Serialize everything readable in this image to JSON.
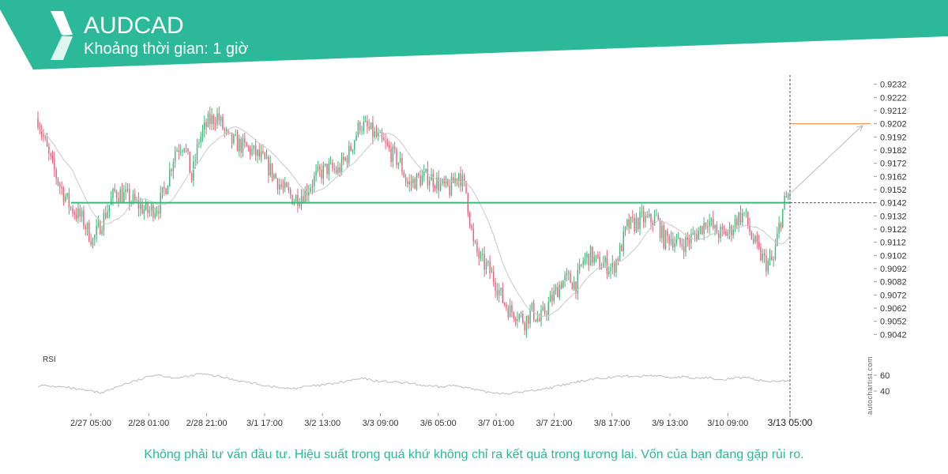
{
  "header": {
    "symbol": "AUDCAD",
    "interval_label": "Khoảng thời gian: 1 giờ",
    "accent_color": "#2bb99a",
    "logo": "autochartist-logo-icon"
  },
  "watermark": "autochartist.com",
  "disclaimer": "Không phải tư vấn đầu tư. Hiệu suất trong quá khứ không chỉ ra kết quả trong tương lai. Vốn của bạn đang gặp rủi ro.",
  "chart_data": {
    "type": "candlestick",
    "title": "",
    "ylim": [
      0.9035,
      0.9236
    ],
    "y_ticks": [
      0.9232,
      0.9222,
      0.9212,
      0.9202,
      0.9192,
      0.9182,
      0.9172,
      0.9162,
      0.9152,
      0.9142,
      0.9132,
      0.9122,
      0.9112,
      0.9102,
      0.9092,
      0.9082,
      0.9072,
      0.9062,
      0.9052,
      0.9042
    ],
    "x_tick_labels": [
      "2/27 05:00",
      "2/28 01:00",
      "2/28 21:00",
      "3/1 17:00",
      "3/2 13:00",
      "3/3 09:00",
      "3/6 05:00",
      "3/7 01:00",
      "3/7 21:00",
      "3/8 17:00",
      "3/9 13:00",
      "3/10 09:00",
      "3/13 05:00"
    ],
    "current_time_label": "3/13 05:00",
    "colors": {
      "up": "#3cb878",
      "down": "#e8607a",
      "support": "#3cb878",
      "target": "#e8883a",
      "ma": "#c8c8c8",
      "rsi": "#bbbbbb"
    },
    "price_anchors": [
      [
        0,
        0.9206
      ],
      [
        6,
        0.9177
      ],
      [
        12,
        0.9155
      ],
      [
        18,
        0.9138
      ],
      [
        24,
        0.913
      ],
      [
        30,
        0.9113
      ],
      [
        36,
        0.9131
      ],
      [
        42,
        0.915
      ],
      [
        48,
        0.9147
      ],
      [
        54,
        0.9141
      ],
      [
        60,
        0.9135
      ],
      [
        66,
        0.914
      ],
      [
        70,
        0.9155
      ],
      [
        75,
        0.9182
      ],
      [
        80,
        0.9188
      ],
      [
        84,
        0.916
      ],
      [
        88,
        0.919
      ],
      [
        93,
        0.9203
      ],
      [
        98,
        0.9208
      ],
      [
        104,
        0.919
      ],
      [
        110,
        0.9186
      ],
      [
        116,
        0.9182
      ],
      [
        122,
        0.9176
      ],
      [
        128,
        0.9165
      ],
      [
        134,
        0.9152
      ],
      [
        140,
        0.9145
      ],
      [
        146,
        0.915
      ],
      [
        152,
        0.9162
      ],
      [
        158,
        0.9168
      ],
      [
        164,
        0.9166
      ],
      [
        170,
        0.918
      ],
      [
        176,
        0.9202
      ],
      [
        182,
        0.9196
      ],
      [
        188,
        0.9188
      ],
      [
        194,
        0.9178
      ],
      [
        198,
        0.9172
      ],
      [
        202,
        0.9156
      ],
      [
        208,
        0.916
      ],
      [
        214,
        0.9162
      ],
      [
        220,
        0.9155
      ],
      [
        225,
        0.9152
      ],
      [
        230,
        0.9165
      ],
      [
        234,
        0.915
      ],
      [
        238,
        0.911
      ],
      [
        242,
        0.9098
      ],
      [
        246,
        0.9092
      ],
      [
        250,
        0.9082
      ],
      [
        254,
        0.9068
      ],
      [
        258,
        0.906
      ],
      [
        262,
        0.9058
      ],
      [
        266,
        0.9052
      ],
      [
        270,
        0.906
      ],
      [
        274,
        0.9052
      ],
      [
        278,
        0.9062
      ],
      [
        282,
        0.9072
      ],
      [
        286,
        0.9082
      ],
      [
        290,
        0.9084
      ],
      [
        294,
        0.908
      ],
      [
        298,
        0.9098
      ],
      [
        302,
        0.9102
      ],
      [
        306,
        0.9096
      ],
      [
        310,
        0.9095
      ],
      [
        314,
        0.9092
      ],
      [
        318,
        0.9105
      ],
      [
        322,
        0.9124
      ],
      [
        326,
        0.9126
      ],
      [
        330,
        0.913
      ],
      [
        334,
        0.9128
      ],
      [
        338,
        0.913
      ],
      [
        342,
        0.9114
      ],
      [
        346,
        0.9116
      ],
      [
        350,
        0.911
      ],
      [
        354,
        0.9112
      ],
      [
        358,
        0.9116
      ],
      [
        362,
        0.9122
      ],
      [
        366,
        0.913
      ],
      [
        370,
        0.912
      ],
      [
        374,
        0.9118
      ],
      [
        378,
        0.912
      ],
      [
        382,
        0.913
      ],
      [
        386,
        0.9134
      ],
      [
        390,
        0.9116
      ],
      [
        394,
        0.9104
      ],
      [
        398,
        0.9096
      ],
      [
        402,
        0.9098
      ],
      [
        405,
        0.9124
      ],
      [
        408,
        0.9142
      ],
      [
        411,
        0.915
      ]
    ],
    "support_level": 0.9142,
    "projection": {
      "from_price": 0.915,
      "to_price": 0.9202
    },
    "rsi": {
      "ticks": [
        60,
        40
      ],
      "ylim": [
        25,
        75
      ],
      "anchors": [
        [
          0,
          47
        ],
        [
          8,
          46
        ],
        [
          14,
          45
        ],
        [
          22,
          42
        ],
        [
          28,
          40
        ],
        [
          34,
          38
        ],
        [
          40,
          42
        ],
        [
          46,
          48
        ],
        [
          52,
          52
        ],
        [
          58,
          56
        ],
        [
          62,
          60
        ],
        [
          66,
          61
        ],
        [
          70,
          58
        ],
        [
          76,
          57
        ],
        [
          82,
          58
        ],
        [
          88,
          62
        ],
        [
          94,
          60
        ],
        [
          100,
          58
        ],
        [
          106,
          55
        ],
        [
          112,
          52
        ],
        [
          118,
          50
        ],
        [
          124,
          47
        ],
        [
          130,
          45
        ],
        [
          136,
          43
        ],
        [
          142,
          44
        ],
        [
          148,
          46
        ],
        [
          154,
          47
        ],
        [
          160,
          49
        ],
        [
          166,
          51
        ],
        [
          172,
          54
        ],
        [
          178,
          56
        ],
        [
          184,
          53
        ],
        [
          190,
          52
        ],
        [
          196,
          51
        ],
        [
          202,
          50
        ],
        [
          208,
          48
        ],
        [
          214,
          46
        ],
        [
          220,
          45
        ],
        [
          226,
          47
        ],
        [
          232,
          46
        ],
        [
          238,
          42
        ],
        [
          244,
          39
        ],
        [
          250,
          38
        ],
        [
          256,
          37
        ],
        [
          262,
          38
        ],
        [
          268,
          40
        ],
        [
          274,
          42
        ],
        [
          280,
          44
        ],
        [
          286,
          47
        ],
        [
          292,
          50
        ],
        [
          298,
          53
        ],
        [
          304,
          56
        ],
        [
          310,
          57
        ],
        [
          316,
          58
        ],
        [
          322,
          59
        ],
        [
          328,
          58
        ],
        [
          334,
          60
        ],
        [
          340,
          59
        ],
        [
          346,
          57
        ],
        [
          352,
          58
        ],
        [
          358,
          56
        ],
        [
          364,
          57
        ],
        [
          370,
          56
        ],
        [
          376,
          55
        ],
        [
          382,
          57
        ],
        [
          388,
          56
        ],
        [
          394,
          54
        ],
        [
          400,
          52
        ],
        [
          405,
          53
        ],
        [
          411,
          52
        ]
      ]
    }
  }
}
